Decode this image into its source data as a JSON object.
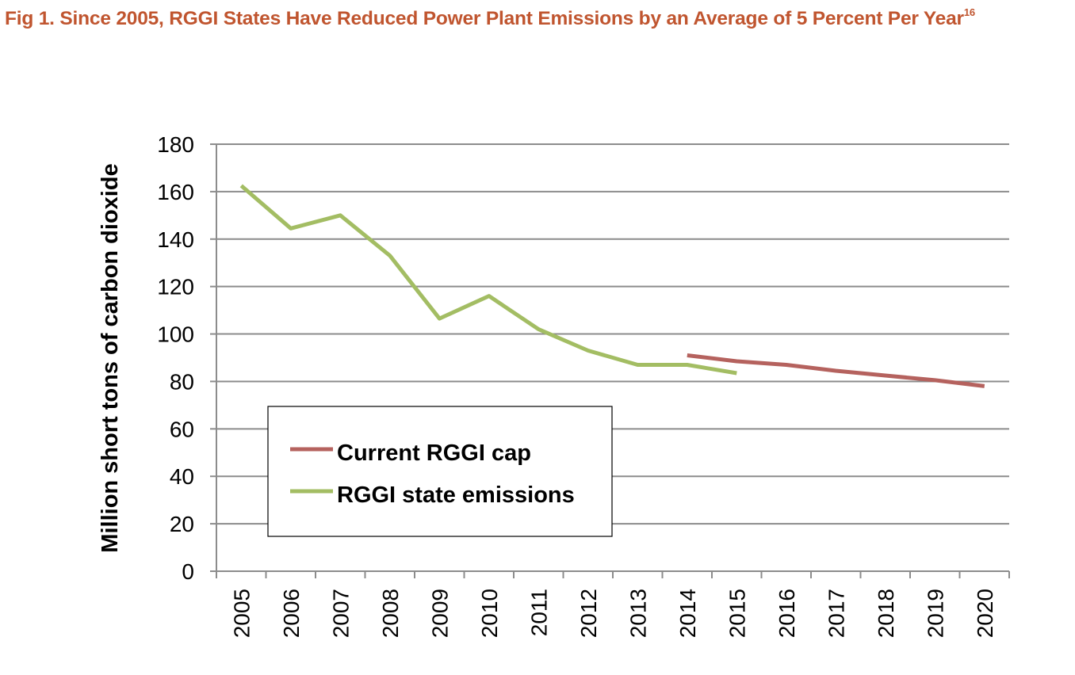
{
  "figure": {
    "title": "Fig 1. Since 2005, RGGI States Have Reduced Power Plant Emissions by an Average of 5 Percent Per Year",
    "footnote": "16"
  },
  "chart_data": {
    "type": "line",
    "title": "",
    "xlabel": "",
    "ylabel": "Million short tons of carbon dioxide",
    "ylim": [
      0,
      180
    ],
    "yticks": [
      0,
      20,
      40,
      60,
      80,
      100,
      120,
      140,
      160,
      180
    ],
    "grid": true,
    "legend_position": "bottom-left",
    "categories": [
      "2005",
      "2006",
      "2007",
      "2008",
      "2009",
      "2010",
      "2011",
      "2012",
      "2013",
      "2014",
      "2015",
      "2016",
      "2017",
      "2018",
      "2019",
      "2020"
    ],
    "series": [
      {
        "name": "Current RGGI cap",
        "color": "#b5625e",
        "values": [
          null,
          null,
          null,
          null,
          null,
          null,
          null,
          null,
          null,
          91,
          88.5,
          87,
          84.5,
          82.5,
          80.5,
          78
        ]
      },
      {
        "name": "RGGI state emissions",
        "color": "#a3bd63",
        "values": [
          162.5,
          144.5,
          150,
          133,
          106.5,
          116,
          102,
          93,
          87,
          87,
          83.5,
          null,
          null,
          null,
          null,
          null
        ]
      }
    ]
  }
}
